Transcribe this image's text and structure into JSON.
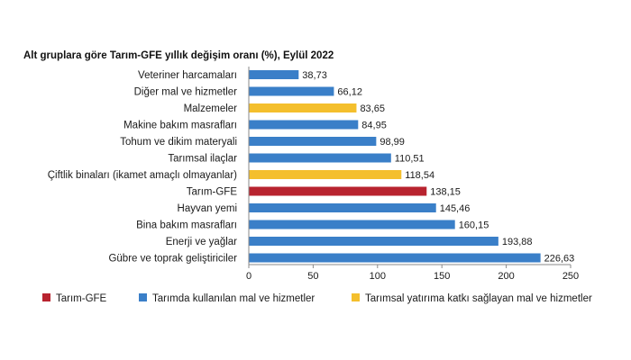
{
  "chart_data": {
    "type": "bar",
    "orientation": "horizontal",
    "title": "Alt gruplara göre Tarım-GFE yıllık değişim oranı (%), Eylül 2022",
    "xlim": [
      0,
      250
    ],
    "xticks": [
      0,
      50,
      100,
      150,
      200,
      250
    ],
    "grid": false,
    "legend_position": "bottom",
    "colors": {
      "tarim_gfe": "#b8232f",
      "mal_hizmet": "#3a7fc8",
      "yatirim": "#f4bf2d"
    },
    "legend": [
      {
        "key": "tarim_gfe",
        "label": "Tarım-GFE"
      },
      {
        "key": "mal_hizmet",
        "label": "Tarımda kullanılan mal ve hizmetler"
      },
      {
        "key": "yatirim",
        "label": "Tarımsal yatırıma katkı sağlayan mal ve hizmetler"
      }
    ],
    "bars": [
      {
        "label": "Veteriner harcamaları",
        "value": 38.73,
        "display": "38,73",
        "group": "mal_hizmet"
      },
      {
        "label": "Diğer mal ve hizmetler",
        "value": 66.12,
        "display": "66,12",
        "group": "mal_hizmet"
      },
      {
        "label": "Malzemeler",
        "value": 83.65,
        "display": "83,65",
        "group": "yatirim"
      },
      {
        "label": "Makine bakım masrafları",
        "value": 84.95,
        "display": "84,95",
        "group": "mal_hizmet"
      },
      {
        "label": "Tohum ve dikim materyali",
        "value": 98.99,
        "display": "98,99",
        "group": "mal_hizmet"
      },
      {
        "label": "Tarımsal ilaçlar",
        "value": 110.51,
        "display": "110,51",
        "group": "mal_hizmet"
      },
      {
        "label": "Çiftlik binaları (ikamet amaçlı olmayanlar)",
        "value": 118.54,
        "display": "118,54",
        "group": "yatirim"
      },
      {
        "label": "Tarım-GFE",
        "value": 138.15,
        "display": "138,15",
        "group": "tarim_gfe"
      },
      {
        "label": "Hayvan yemi",
        "value": 145.46,
        "display": "145,46",
        "group": "mal_hizmet"
      },
      {
        "label": "Bina bakım masrafları",
        "value": 160.15,
        "display": "160,15",
        "group": "mal_hizmet"
      },
      {
        "label": "Enerji ve yağlar",
        "value": 193.88,
        "display": "193,88",
        "group": "mal_hizmet"
      },
      {
        "label": "Gübre ve toprak geliştiriciler",
        "value": 226.63,
        "display": "226,63",
        "group": "mal_hizmet"
      }
    ]
  }
}
